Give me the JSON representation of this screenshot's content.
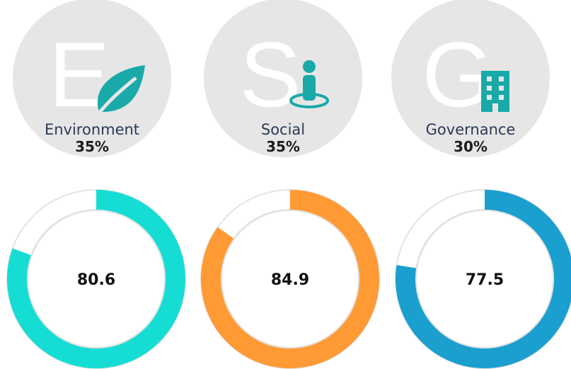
{
  "pillars": [
    {
      "letter": "E",
      "name": "Environment",
      "weight": "35%",
      "score": 80.6,
      "color": "#16ddd3"
    },
    {
      "letter": "S",
      "name": "Social",
      "weight": "35%",
      "score": 84.9,
      "color": "#ff9a35"
    },
    {
      "letter": "G",
      "name": "Governance",
      "weight": "30%",
      "score": 77.5,
      "color": "#1a9fcf"
    }
  ]
}
